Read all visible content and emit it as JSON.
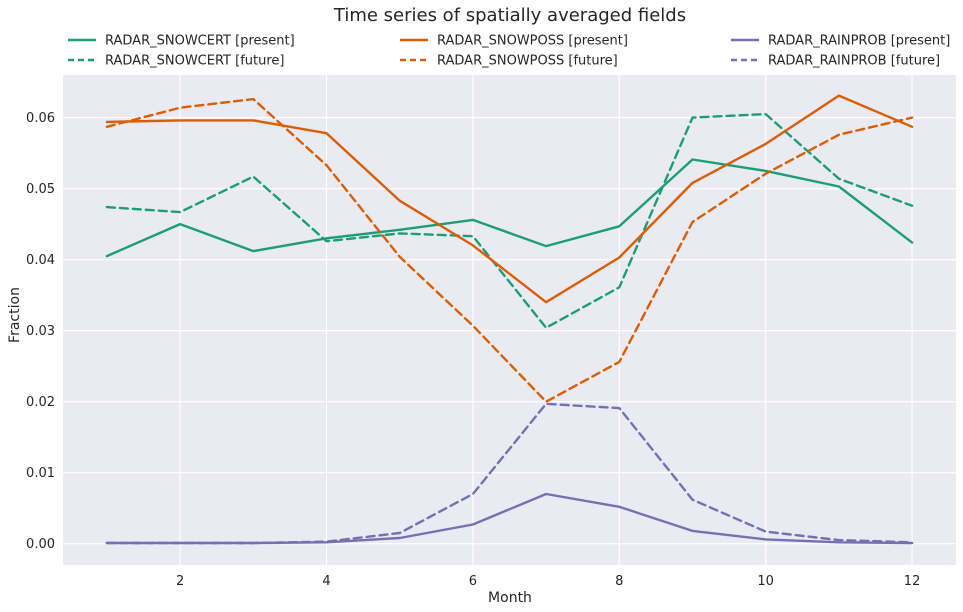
{
  "chart_data": {
    "type": "line",
    "title": "Time series of spatially averaged fields",
    "xlabel": "Month",
    "ylabel": "Fraction",
    "xlim": [
      0.4,
      12.6
    ],
    "ylim": [
      -0.003,
      0.066
    ],
    "xticks": [
      2,
      4,
      6,
      8,
      10,
      12
    ],
    "yticks": [
      0.0,
      0.01,
      0.02,
      0.03,
      0.04,
      0.05,
      0.06
    ],
    "ytick_labels": [
      "0.00",
      "0.01",
      "0.02",
      "0.03",
      "0.04",
      "0.05",
      "0.06"
    ],
    "grid": true,
    "legend_position": "top, three columns",
    "x": [
      1,
      2,
      3,
      4,
      5,
      6,
      7,
      8,
      9,
      10,
      11,
      12
    ],
    "series": [
      {
        "name": "RADAR_SNOWCERT [present]",
        "color": "#1b9e77",
        "style": "solid",
        "values": [
          0.0405,
          0.045,
          0.0412,
          0.043,
          0.0442,
          0.0456,
          0.0419,
          0.0447,
          0.0541,
          0.0525,
          0.0503,
          0.0424
        ]
      },
      {
        "name": "RADAR_SNOWCERT [future]",
        "color": "#1b9e77",
        "style": "dashed",
        "values": [
          0.0474,
          0.0467,
          0.0517,
          0.0426,
          0.0437,
          0.0433,
          0.0304,
          0.0361,
          0.06,
          0.0605,
          0.0514,
          0.0476
        ]
      },
      {
        "name": "RADAR_SNOWPOSS [present]",
        "color": "#d95f02",
        "style": "solid",
        "values": [
          0.0594,
          0.0596,
          0.0596,
          0.0578,
          0.0483,
          0.042,
          0.034,
          0.0403,
          0.0508,
          0.0563,
          0.0631,
          0.0587
        ]
      },
      {
        "name": "RADAR_SNOWPOSS [future]",
        "color": "#d95f02",
        "style": "dashed",
        "values": [
          0.0587,
          0.0614,
          0.0626,
          0.0533,
          0.0404,
          0.0307,
          0.02,
          0.0256,
          0.0453,
          0.0521,
          0.0576,
          0.06
        ]
      },
      {
        "name": "RADAR_RAINPROB [present]",
        "color": "#7570b3",
        "style": "solid",
        "values": [
          0.0001,
          0.0001,
          0.0001,
          0.0002,
          0.0008,
          0.0027,
          0.007,
          0.0052,
          0.0018,
          0.0006,
          0.0002,
          0.0001
        ]
      },
      {
        "name": "RADAR_RAINPROB [future]",
        "color": "#7570b3",
        "style": "dashed",
        "values": [
          0.0001,
          0.0001,
          0.0001,
          0.0003,
          0.0015,
          0.007,
          0.0197,
          0.0191,
          0.0062,
          0.0017,
          0.0005,
          0.0002
        ]
      }
    ]
  }
}
